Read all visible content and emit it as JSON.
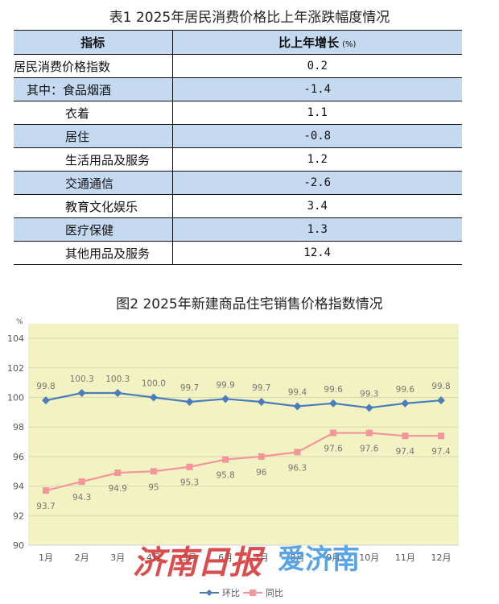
{
  "table1": {
    "title": "表1 2025年居民消费价格比上年涨跌幅度情况",
    "headers": {
      "indicator": "指标",
      "growth": "比上年增长",
      "unit": "(%)"
    },
    "rows": [
      {
        "label": "居民消费价格指数",
        "value": "0.2",
        "indent": 0
      },
      {
        "label": "其中：食品烟酒",
        "value": "-1.4",
        "indent": 1
      },
      {
        "label": "衣着",
        "value": "1.1",
        "indent": 2
      },
      {
        "label": "居住",
        "value": "-0.8",
        "indent": 2
      },
      {
        "label": "生活用品及服务",
        "value": "1.2",
        "indent": 2
      },
      {
        "label": "交通通信",
        "value": "-2.6",
        "indent": 2
      },
      {
        "label": "教育文化娱乐",
        "value": "3.4",
        "indent": 2
      },
      {
        "label": "医疗保健",
        "value": "1.3",
        "indent": 2
      },
      {
        "label": "其他用品及服务",
        "value": "12.4",
        "indent": 2
      }
    ],
    "colors": {
      "header_bg": "#c5d9f1",
      "stripe_bg": "#c5d9f1",
      "border": "#111111"
    }
  },
  "figure2": {
    "title": "图2 2025年新建商品住宅销售价格指数情况",
    "unit_label": "%",
    "watermark": {
      "left": "济南日报",
      "right": "爱济南"
    }
  },
  "chart_data": {
    "type": "line",
    "title": "图2 2025年新建商品住宅销售价格指数情况",
    "xlabel": "",
    "ylabel": "%",
    "categories": [
      "1月",
      "2月",
      "3月",
      "4月",
      "5月",
      "6月",
      "7月",
      "8月",
      "9月",
      "10月",
      "11月",
      "12月"
    ],
    "series": [
      {
        "name": "环比",
        "color": "#4a7ebb",
        "marker": "diamond",
        "values": [
          99.8,
          100.3,
          100.3,
          100.0,
          99.7,
          99.9,
          99.7,
          99.4,
          99.6,
          99.3,
          99.6,
          99.8
        ],
        "labels": [
          "99.8",
          "100.3",
          "100.3",
          "100.0",
          "99.7",
          "99.9",
          "99.7",
          "99.4",
          "99.6",
          "99.3",
          "99.6",
          "99.8"
        ]
      },
      {
        "name": "同比",
        "color": "#f4959b",
        "marker": "square",
        "values": [
          93.7,
          94.3,
          94.9,
          95.0,
          95.3,
          95.8,
          96.0,
          96.3,
          97.6,
          97.6,
          97.4,
          97.4
        ],
        "labels": [
          "93.7",
          "94.3",
          "94.9",
          "95",
          "95.3",
          "95.8",
          "96",
          "96.3",
          "97.6",
          "97.6",
          "97.4",
          "97.4"
        ]
      }
    ],
    "yticks": [
      90,
      92,
      94,
      96,
      98,
      100,
      102,
      104
    ],
    "ylim": [
      90,
      105
    ],
    "grid": true,
    "plot_bg": "#f2f2c2",
    "legend_position": "bottom"
  }
}
